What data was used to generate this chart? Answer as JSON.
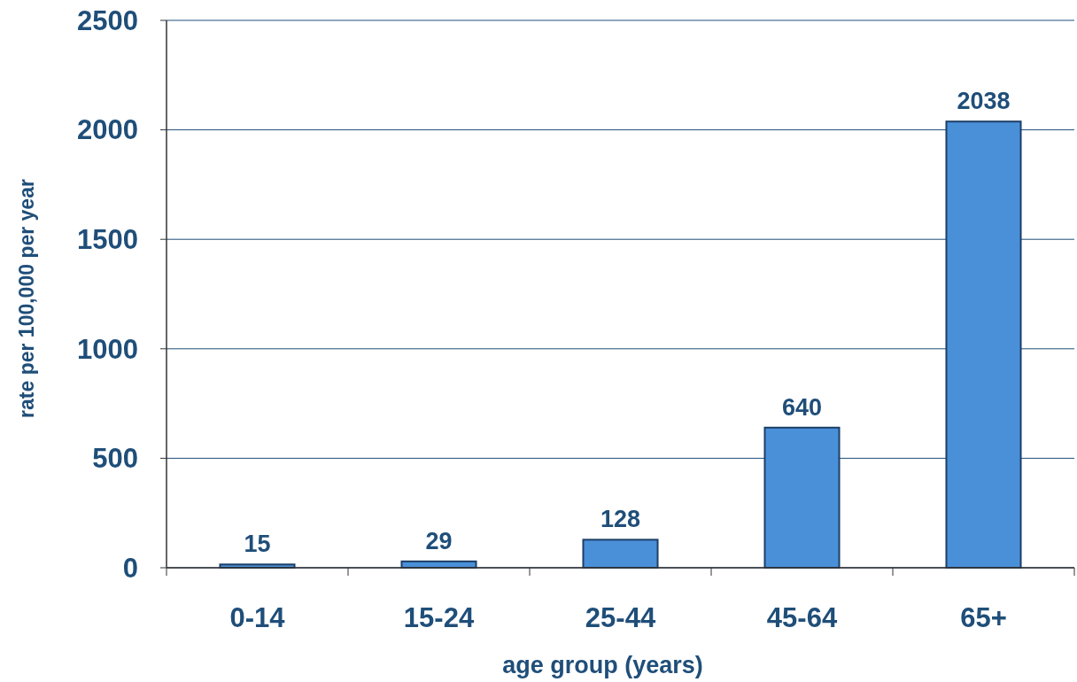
{
  "chart_data": {
    "type": "bar",
    "xlabel": "age group (years)",
    "ylabel": "rate per 100,000 per year",
    "categories": [
      "0-14",
      "15-24",
      "25-44",
      "45-64",
      "65+"
    ],
    "values": [
      15,
      29,
      128,
      640,
      2038
    ],
    "color": "#4a90d9",
    "data_labels": true,
    "ylim": [
      0,
      2500
    ],
    "yticks": [
      0,
      500,
      1000,
      1500,
      2000,
      2500
    ],
    "grid": "y"
  }
}
